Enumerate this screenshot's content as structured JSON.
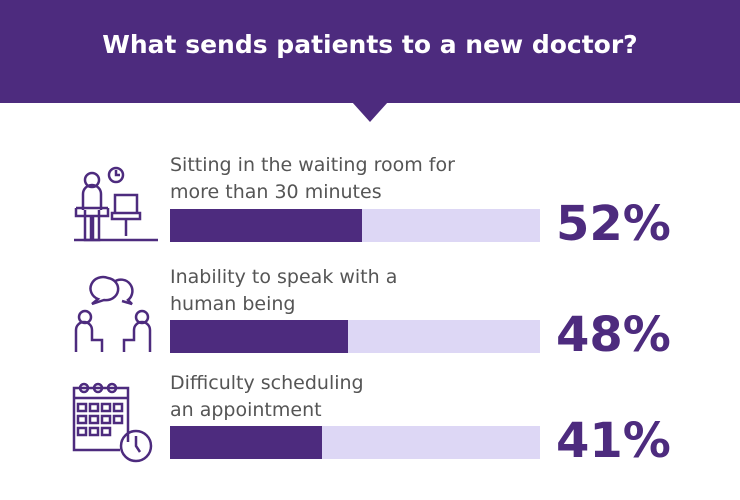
{
  "title": "What sends patients to a new doctor?",
  "colors": {
    "primary": "#4d2b7e",
    "track": "#ddd7f5",
    "text": "#555555"
  },
  "chart_data": {
    "type": "bar",
    "title": "What sends patients to a new doctor?",
    "categories": [
      "Sitting in the waiting room for more than 30 minutes",
      "Inability to speak with a human being",
      "Difficulty scheduling an appointment"
    ],
    "values": [
      52,
      48,
      41
    ],
    "ylim": [
      0,
      100
    ],
    "items": [
      {
        "line1": "Sitting in the waiting room for",
        "line2": "more than 30 minutes",
        "value": 52,
        "label": "52%",
        "icon": "waiting-room-icon"
      },
      {
        "line1": "Inability to speak with a",
        "line2": "human being",
        "value": 48,
        "label": "48%",
        "icon": "conversation-icon"
      },
      {
        "line1": "Difficulty scheduling",
        "line2": "an appointment",
        "value": 41,
        "label": "41%",
        "icon": "calendar-clock-icon"
      }
    ]
  }
}
